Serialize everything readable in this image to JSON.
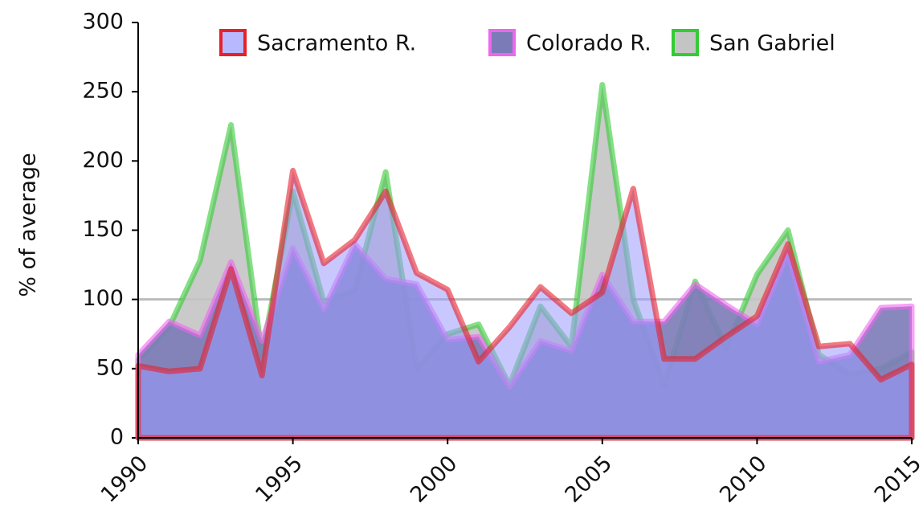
{
  "chart_data": {
    "type": "area",
    "ylabel": "% of average",
    "x": [
      1990,
      1991,
      1992,
      1993,
      1994,
      1995,
      1996,
      1997,
      1998,
      1999,
      2000,
      2001,
      2002,
      2003,
      2004,
      2005,
      2006,
      2007,
      2008,
      2009,
      2010,
      2011,
      2012,
      2013,
      2014,
      2015
    ],
    "series": [
      {
        "name": "San Gabriel",
        "color": "#33cc33",
        "fill": "#c4c4c4",
        "values": [
          56,
          80,
          128,
          226,
          60,
          178,
          98,
          107,
          192,
          50,
          75,
          82,
          38,
          95,
          66,
          255,
          100,
          38,
          113,
          65,
          118,
          150,
          60,
          46,
          50,
          62
        ]
      },
      {
        "name": "Colorado R.",
        "color": "#ee66ee",
        "fill": "#7b7bb8",
        "values": [
          60,
          84,
          74,
          127,
          70,
          137,
          93,
          140,
          115,
          111,
          71,
          73,
          37,
          70,
          63,
          118,
          84,
          84,
          111,
          96,
          82,
          134,
          55,
          60,
          94,
          95
        ]
      },
      {
        "name": "Sacramento R.",
        "color": "#e8202a",
        "fill": "#9a9aff",
        "values": [
          52,
          48,
          50,
          122,
          45,
          193,
          126,
          143,
          178,
          119,
          107,
          55,
          80,
          109,
          90,
          105,
          180,
          57,
          57,
          73,
          88,
          140,
          66,
          68,
          42,
          53
        ]
      }
    ],
    "legend_order": [
      2,
      1,
      0
    ],
    "xlim": [
      1990,
      2015
    ],
    "xticks": [
      1990,
      1995,
      2000,
      2005,
      2010,
      2015
    ],
    "ylim": [
      0,
      300
    ],
    "yticks": [
      0,
      50,
      100,
      150,
      200,
      250,
      300
    ],
    "reference_line": 100
  }
}
